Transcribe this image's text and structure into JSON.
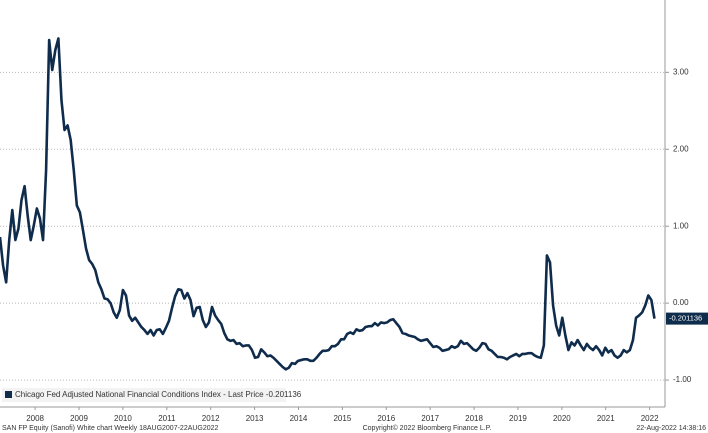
{
  "chart_data": {
    "type": "line",
    "series": [
      {
        "name": "Chicago Fed Adjusted National Financial Conditions Index - Last Price -0.201136",
        "color": "#0f2c4c",
        "values": [
          0.86,
          0.49,
          0.27,
          0.82,
          1.21,
          0.82,
          0.97,
          1.34,
          1.52,
          1.14,
          0.82,
          1.01,
          1.23,
          1.1,
          0.82,
          1.73,
          3.42,
          3.03,
          3.29,
          3.44,
          2.64,
          2.25,
          2.31,
          2.12,
          1.73,
          1.27,
          1.18,
          0.95,
          0.71,
          0.56,
          0.51,
          0.43,
          0.27,
          0.18,
          0.06,
          0.05,
          0.0,
          -0.12,
          -0.19,
          -0.09,
          0.17,
          0.1,
          -0.16,
          -0.23,
          -0.19,
          -0.25,
          -0.31,
          -0.35,
          -0.4,
          -0.35,
          -0.42,
          -0.35,
          -0.34,
          -0.4,
          -0.32,
          -0.23,
          -0.06,
          0.09,
          0.18,
          0.17,
          0.06,
          0.13,
          0.04,
          -0.17,
          -0.06,
          -0.05,
          -0.22,
          -0.31,
          -0.25,
          -0.05,
          -0.16,
          -0.22,
          -0.27,
          -0.39,
          -0.47,
          -0.49,
          -0.48,
          -0.53,
          -0.52,
          -0.56,
          -0.55,
          -0.55,
          -0.61,
          -0.71,
          -0.7,
          -0.6,
          -0.64,
          -0.69,
          -0.68,
          -0.71,
          -0.75,
          -0.79,
          -0.83,
          -0.86,
          -0.84,
          -0.78,
          -0.79,
          -0.75,
          -0.74,
          -0.73,
          -0.73,
          -0.75,
          -0.75,
          -0.71,
          -0.66,
          -0.62,
          -0.62,
          -0.61,
          -0.56,
          -0.56,
          -0.53,
          -0.47,
          -0.47,
          -0.4,
          -0.38,
          -0.4,
          -0.34,
          -0.36,
          -0.35,
          -0.31,
          -0.3,
          -0.3,
          -0.26,
          -0.29,
          -0.25,
          -0.26,
          -0.25,
          -0.22,
          -0.21,
          -0.26,
          -0.31,
          -0.39,
          -0.4,
          -0.42,
          -0.43,
          -0.44,
          -0.47,
          -0.49,
          -0.48,
          -0.47,
          -0.52,
          -0.57,
          -0.56,
          -0.58,
          -0.62,
          -0.61,
          -0.6,
          -0.56,
          -0.58,
          -0.56,
          -0.49,
          -0.53,
          -0.52,
          -0.56,
          -0.6,
          -0.62,
          -0.58,
          -0.52,
          -0.53,
          -0.6,
          -0.62,
          -0.66,
          -0.7,
          -0.7,
          -0.71,
          -0.73,
          -0.7,
          -0.68,
          -0.66,
          -0.69,
          -0.66,
          -0.66,
          -0.65,
          -0.65,
          -0.68,
          -0.7,
          -0.71,
          -0.55,
          0.62,
          0.53,
          -0.03,
          -0.29,
          -0.42,
          -0.19,
          -0.42,
          -0.61,
          -0.51,
          -0.55,
          -0.48,
          -0.55,
          -0.61,
          -0.53,
          -0.58,
          -0.61,
          -0.56,
          -0.61,
          -0.68,
          -0.58,
          -0.64,
          -0.61,
          -0.68,
          -0.71,
          -0.68,
          -0.61,
          -0.64,
          -0.61,
          -0.48,
          -0.19,
          -0.16,
          -0.12,
          -0.03,
          0.1,
          0.04,
          -0.201136
        ]
      }
    ],
    "x": [
      2007.7,
      2007.77,
      2007.84,
      2007.91,
      2007.98,
      2008.05,
      2008.12,
      2008.19,
      2008.26,
      2008.33,
      2008.4,
      2008.47,
      2008.54,
      2008.61,
      2008.68,
      2008.75,
      2008.82,
      2008.89,
      2008.96,
      2009.03,
      2009.1,
      2009.17,
      2009.24,
      2009.31,
      2009.38,
      2009.45,
      2009.52,
      2009.59,
      2009.66,
      2009.73,
      2009.8,
      2009.87,
      2009.94,
      2010.01,
      2010.08,
      2010.15,
      2010.22,
      2010.29,
      2010.36,
      2010.43,
      2010.5,
      2010.57,
      2010.64,
      2010.71,
      2010.78,
      2010.85,
      2010.92,
      2010.99,
      2011.06,
      2011.13,
      2011.2,
      2011.27,
      2011.34,
      2011.41,
      2011.48,
      2011.55,
      2011.62,
      2011.69,
      2011.76,
      2011.83,
      2011.9,
      2011.97,
      2012.04,
      2012.11,
      2012.18,
      2012.25,
      2012.32,
      2012.39,
      2012.46,
      2012.53,
      2012.6,
      2012.67,
      2012.74,
      2012.81,
      2012.88,
      2012.95,
      2013.02,
      2013.09,
      2013.16,
      2013.23,
      2013.3,
      2013.37,
      2013.44,
      2013.51,
      2013.58,
      2013.65,
      2013.72,
      2013.79,
      2013.86,
      2013.93,
      2014.0,
      2014.07,
      2014.14,
      2014.21,
      2014.28,
      2014.35,
      2014.42,
      2014.49,
      2014.56,
      2014.63,
      2014.7,
      2014.77,
      2014.84,
      2014.91,
      2014.98,
      2015.05,
      2015.12,
      2015.19,
      2015.26,
      2015.33,
      2015.4,
      2015.47,
      2015.54,
      2015.61,
      2015.68,
      2015.75,
      2015.82,
      2015.89,
      2015.96,
      2016.03,
      2016.1,
      2016.17,
      2016.24,
      2016.31,
      2016.38,
      2016.45,
      2016.52,
      2016.59,
      2016.66,
      2016.73,
      2016.8,
      2016.87,
      2016.94,
      2017.01,
      2017.08,
      2017.15,
      2017.22,
      2017.29,
      2017.36,
      2017.43,
      2017.5,
      2017.57,
      2017.64,
      2017.71,
      2017.78,
      2017.85,
      2017.92,
      2017.99,
      2018.06,
      2018.13,
      2018.2,
      2018.27,
      2018.34,
      2018.41,
      2018.48,
      2018.55,
      2018.62,
      2018.69,
      2018.76,
      2018.83,
      2018.9,
      2018.97,
      2019.04,
      2019.11,
      2019.18,
      2019.25,
      2019.32,
      2019.39,
      2019.46,
      2019.53,
      2019.6,
      2019.67,
      2019.74,
      2019.81,
      2019.88,
      2019.95,
      2020.02,
      2020.09,
      2020.16,
      2020.23,
      2020.3,
      2020.37,
      2020.44,
      2020.51,
      2020.58,
      2020.65,
      2020.72,
      2020.79,
      2020.86,
      2020.93,
      2021.0,
      2021.07,
      2021.14,
      2021.21,
      2021.28,
      2021.35,
      2021.42,
      2021.49,
      2021.56,
      2021.63,
      2021.7,
      2021.77,
      2021.84,
      2021.91,
      2021.98,
      2022.05,
      2022.12,
      2022.19,
      2022.26,
      2022.33,
      2022.4,
      2022.47,
      2022.54,
      2022.61
    ],
    "xlim": [
      2007.7,
      2022.85
    ],
    "xticks": [
      {
        "value": 2008.5,
        "label": "2008"
      },
      {
        "value": 2009.5,
        "label": "2009"
      },
      {
        "value": 2010.5,
        "label": "2010"
      },
      {
        "value": 2011.5,
        "label": "2011"
      },
      {
        "value": 2012.5,
        "label": "2012"
      },
      {
        "value": 2013.5,
        "label": "2013"
      },
      {
        "value": 2014.5,
        "label": "2014"
      },
      {
        "value": 2015.5,
        "label": "2015"
      },
      {
        "value": 2016.5,
        "label": "2016"
      },
      {
        "value": 2017.5,
        "label": "2017"
      },
      {
        "value": 2018.5,
        "label": "2018"
      },
      {
        "value": 2019.5,
        "label": "2019"
      },
      {
        "value": 2020.5,
        "label": "2020"
      },
      {
        "value": 2021.5,
        "label": "2021"
      },
      {
        "value": 2022.5,
        "label": "2022"
      }
    ],
    "ylim": [
      -1.35,
      3.94
    ],
    "yticks": [
      {
        "value": 3,
        "label": "3.00"
      },
      {
        "value": 2,
        "label": "2.00"
      },
      {
        "value": 1,
        "label": "1.00"
      },
      {
        "value": 0,
        "label": "0.00"
      },
      {
        "value": -1,
        "label": "-1.00"
      }
    ],
    "grid": true,
    "legend": "bottom-left",
    "footer_left": "SAN FP Equity (Sanofi) White chart  Weekly 18AUG2007-22AUG2022",
    "footer_center": "Copyright© 2022 Bloomberg Finance L.P.",
    "footer_right": "22-Aug-2022 14:38:16"
  }
}
